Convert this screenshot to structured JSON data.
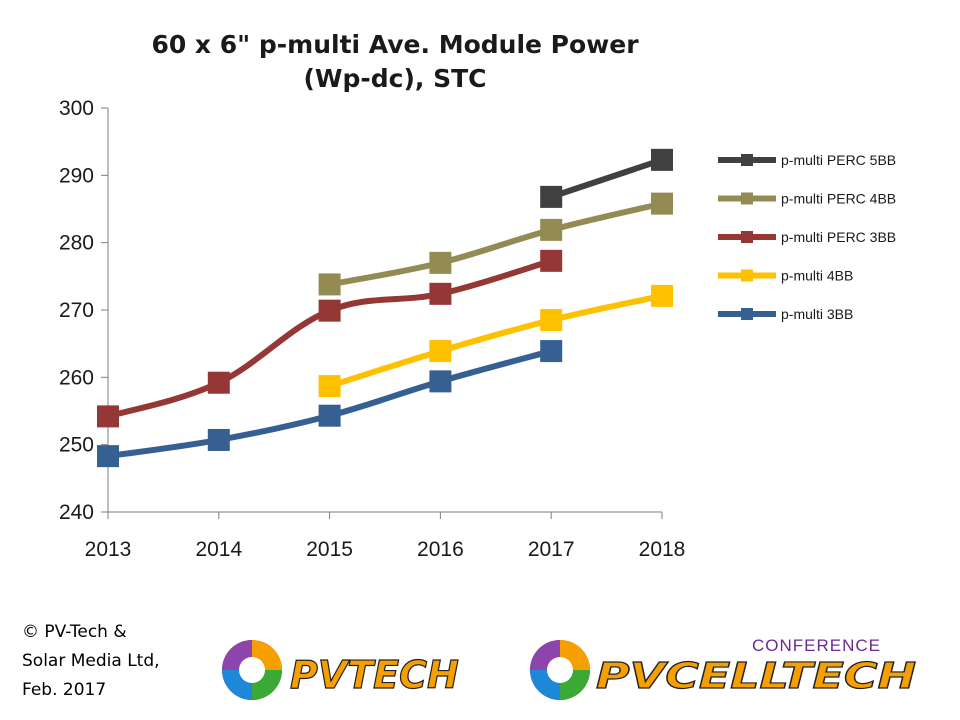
{
  "chart_data": {
    "type": "line",
    "title_lines": [
      "60 x 6\" p-multi Ave. Module Power",
      "(Wp-dc), STC"
    ],
    "categories": [
      "2013",
      "2014",
      "2015",
      "2016",
      "2017",
      "2018"
    ],
    "ylim": [
      240,
      300
    ],
    "yticks": [
      "240",
      "250",
      "260",
      "270",
      "280",
      "290",
      "300"
    ],
    "grid": false,
    "legend_position": "right",
    "series": [
      {
        "name": "p-multi PERC 5BB",
        "color": "#404040",
        "values": [
          null,
          null,
          null,
          null,
          286.8,
          292.3
        ]
      },
      {
        "name": "p-multi PERC 4BB",
        "color": "#948a54",
        "values": [
          null,
          null,
          273.8,
          277.0,
          281.9,
          285.8
        ]
      },
      {
        "name": "p-multi PERC 3BB",
        "color": "#953735",
        "values": [
          254.2,
          259.2,
          269.9,
          272.4,
          277.3,
          null
        ]
      },
      {
        "name": "p-multi 4BB",
        "color": "#ffc000",
        "values": [
          null,
          null,
          258.7,
          263.9,
          268.5,
          272.1
        ]
      },
      {
        "name": "p-multi 3BB",
        "color": "#366092",
        "values": [
          248.3,
          250.7,
          254.3,
          259.4,
          263.9,
          null
        ]
      }
    ]
  },
  "footer": {
    "copyright_lines": [
      "© PV-Tech &",
      "Solar Media Ltd,",
      "Feb. 2017"
    ],
    "logo_pvtech": "PVTECH",
    "logo_pvcelltech": "PVCELLTECH",
    "logo_conference": "CONFERENCE"
  },
  "colors": {
    "axis": "#7f7f7f",
    "text": "#1a1a1a",
    "brand_orange": "#f5a000",
    "brand_purple": "#6b2c91"
  }
}
